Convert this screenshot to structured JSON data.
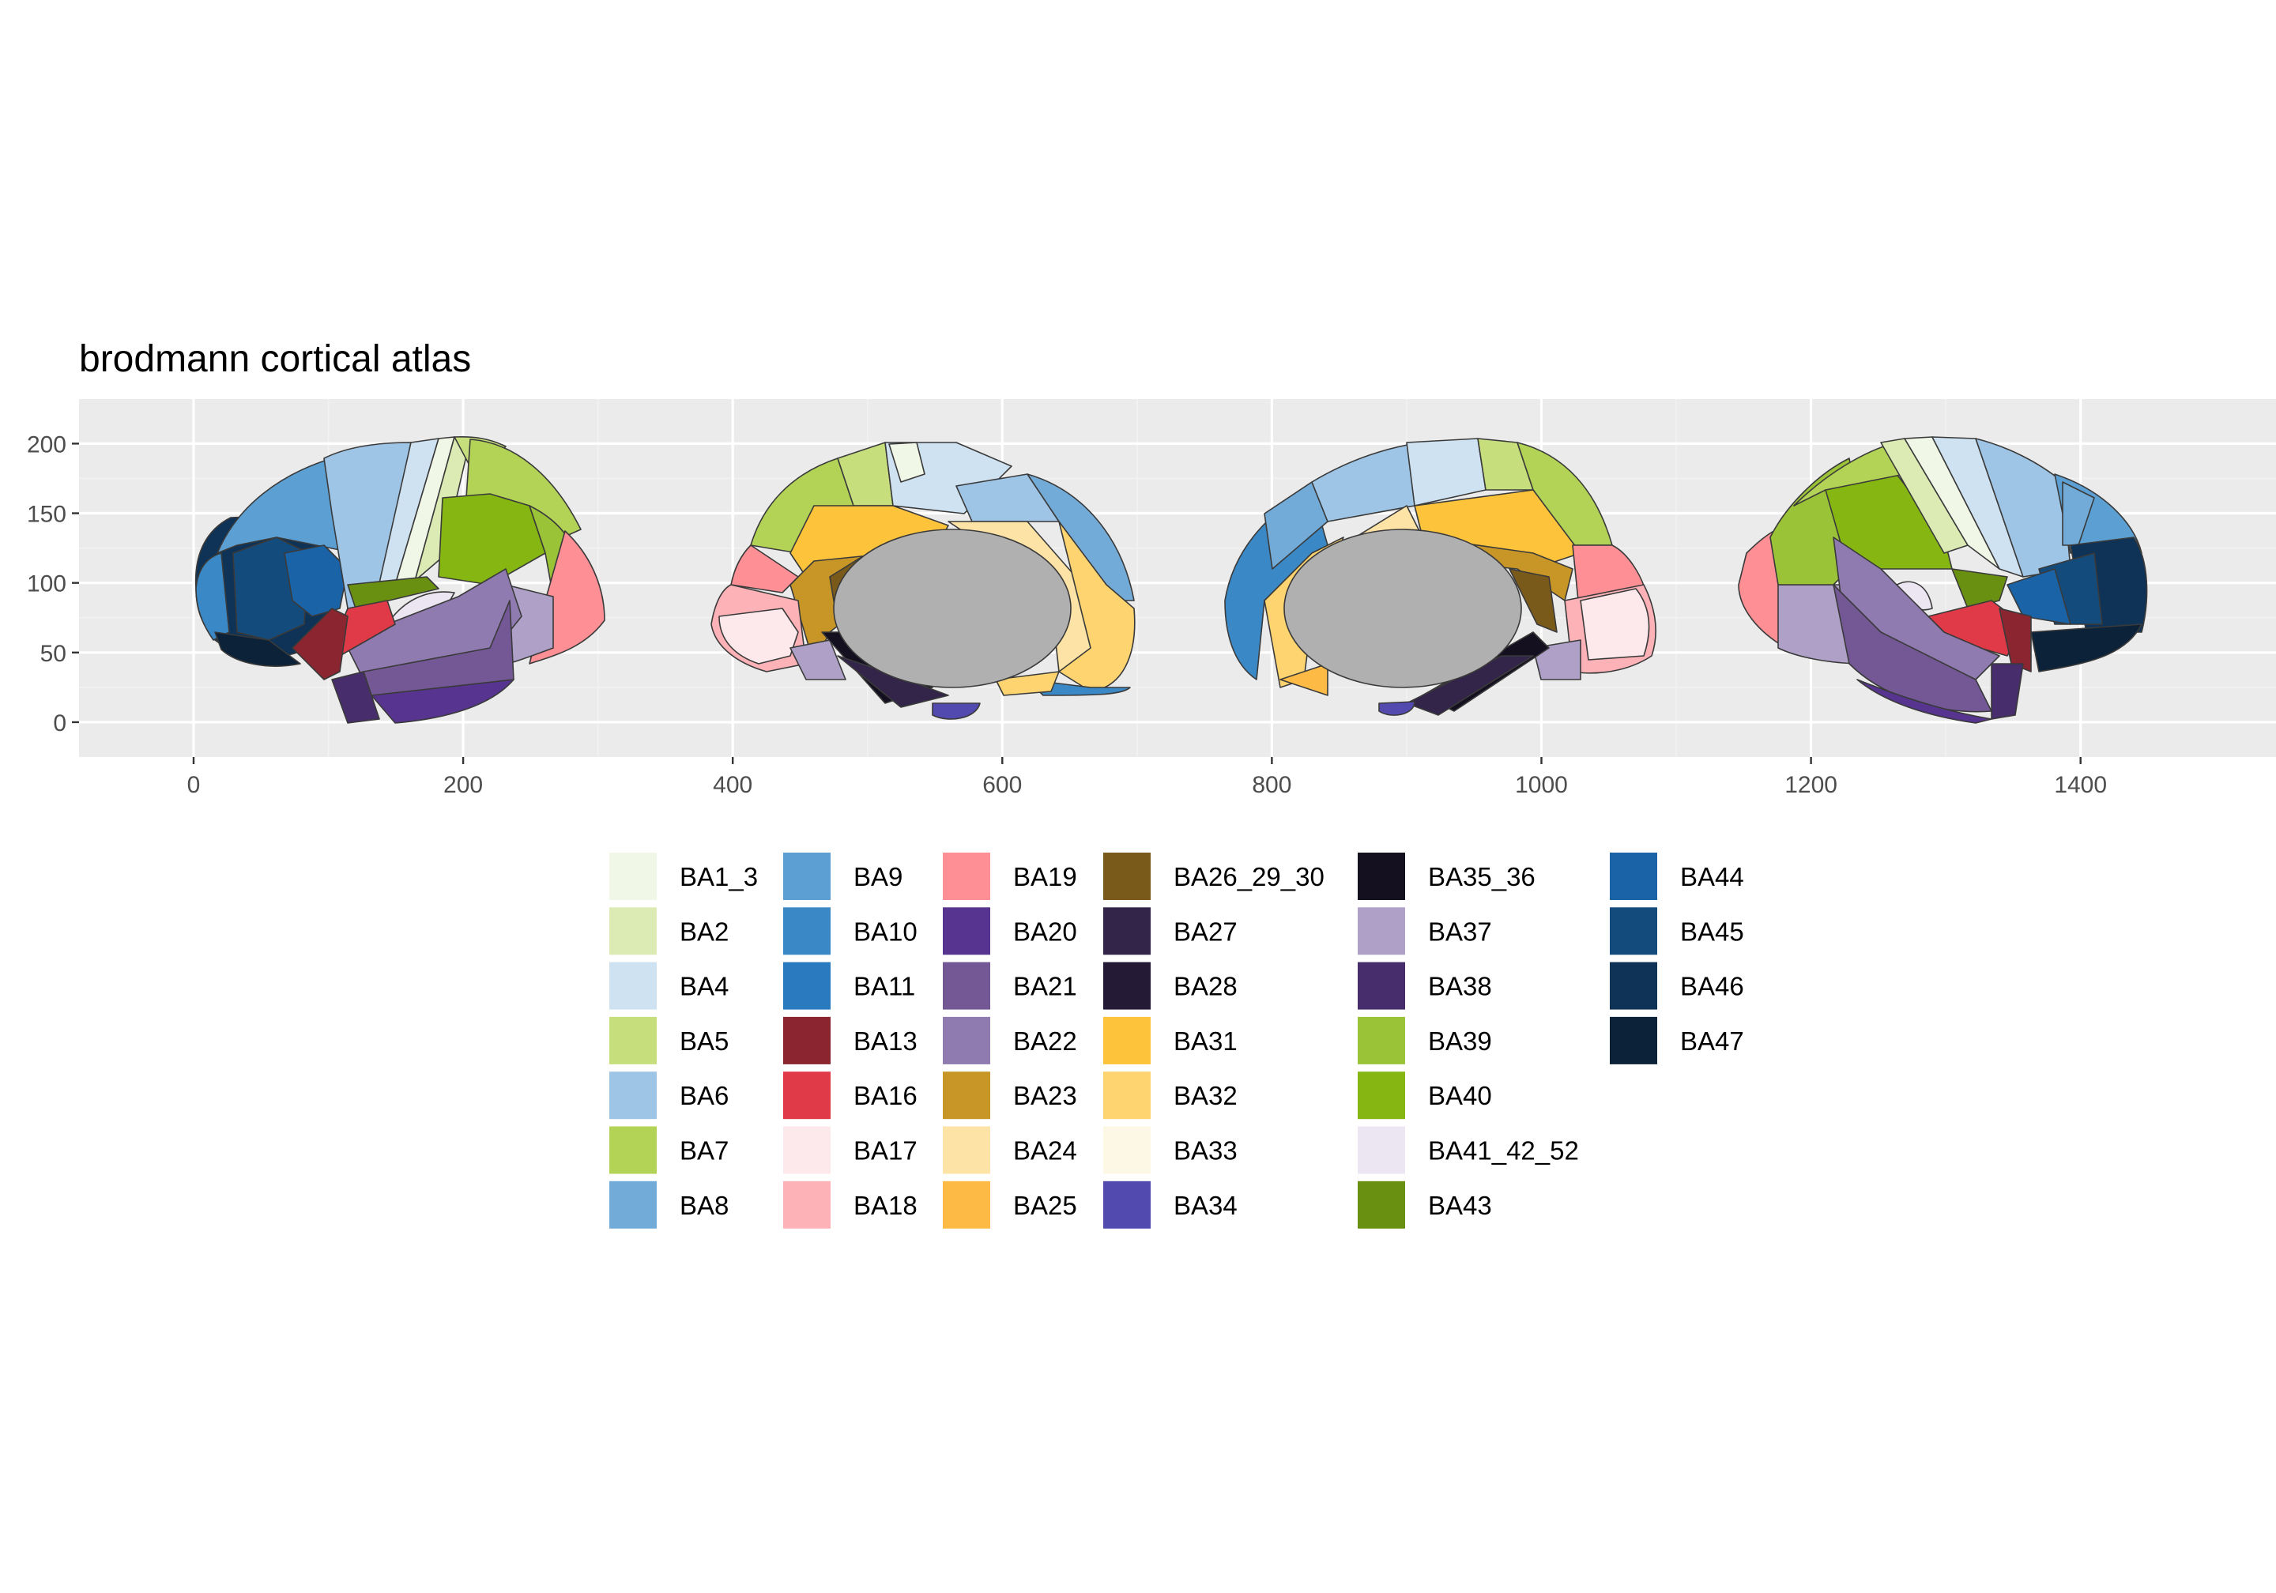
{
  "chart_data": {
    "type": "map",
    "title": "brodmann cortical atlas",
    "xlabel": "",
    "ylabel": "",
    "xlim": [
      -85,
      1545
    ],
    "ylim": [
      -25,
      232
    ],
    "x_ticks": [
      0,
      200,
      400,
      600,
      800,
      1000,
      1200,
      1400
    ],
    "y_ticks": [
      0,
      50,
      100,
      150,
      200
    ],
    "grid": true,
    "legend_position": "bottom",
    "views": [
      "lateral left",
      "medial left",
      "medial right",
      "lateral right"
    ],
    "medial_wall_color": "#b0b0b0",
    "legend": [
      {
        "name": "BA1_3",
        "color": "#f1f7e6"
      },
      {
        "name": "BA2",
        "color": "#dbebb3"
      },
      {
        "name": "BA4",
        "color": "#cfe2f1"
      },
      {
        "name": "BA5",
        "color": "#c6df7c"
      },
      {
        "name": "BA6",
        "color": "#9fc5e6"
      },
      {
        "name": "BA7",
        "color": "#b2d355"
      },
      {
        "name": "BA8",
        "color": "#72abd8"
      },
      {
        "name": "BA9",
        "color": "#5c9fd2"
      },
      {
        "name": "BA10",
        "color": "#3a89c6"
      },
      {
        "name": "BA11",
        "color": "#2a7abf"
      },
      {
        "name": "BA13",
        "color": "#8b2530"
      },
      {
        "name": "BA16",
        "color": "#e03a48"
      },
      {
        "name": "BA17",
        "color": "#fde9ec"
      },
      {
        "name": "BA18",
        "color": "#fdb2b7"
      },
      {
        "name": "BA19",
        "color": "#fd8f95"
      },
      {
        "name": "BA20",
        "color": "#56348f"
      },
      {
        "name": "BA21",
        "color": "#735895"
      },
      {
        "name": "BA22",
        "color": "#8f7bb0"
      },
      {
        "name": "BA23",
        "color": "#c79626"
      },
      {
        "name": "BA24",
        "color": "#fde3a5"
      },
      {
        "name": "BA25",
        "color": "#fdbb45"
      },
      {
        "name": "BA26_29_30",
        "color": "#7a5a1a"
      },
      {
        "name": "BA27",
        "color": "#33244a"
      },
      {
        "name": "BA28",
        "color": "#251a35"
      },
      {
        "name": "BA31",
        "color": "#fdc33a"
      },
      {
        "name": "BA32",
        "color": "#fdd46f"
      },
      {
        "name": "BA33",
        "color": "#fdf7e5"
      },
      {
        "name": "BA34",
        "color": "#534ab0"
      },
      {
        "name": "BA35_36",
        "color": "#15101f"
      },
      {
        "name": "BA37",
        "color": "#afa0c7"
      },
      {
        "name": "BA38",
        "color": "#472d6b"
      },
      {
        "name": "BA39",
        "color": "#9bc337"
      },
      {
        "name": "BA40",
        "color": "#86b611"
      },
      {
        "name": "BA41_42_52",
        "color": "#ece6f2"
      },
      {
        "name": "BA43",
        "color": "#6a9011"
      },
      {
        "name": "BA44",
        "color": "#1a63a7"
      },
      {
        "name": "BA45",
        "color": "#144b7d"
      },
      {
        "name": "BA46",
        "color": "#0e3357"
      },
      {
        "name": "BA47",
        "color": "#0c2238"
      }
    ]
  }
}
